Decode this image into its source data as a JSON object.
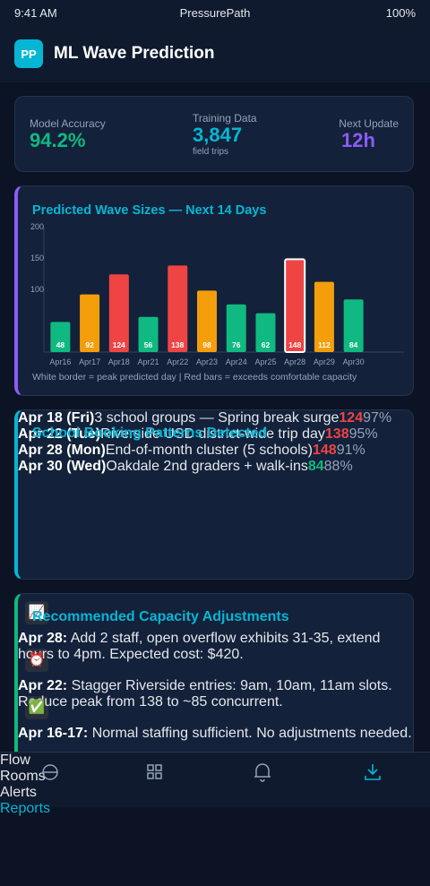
{
  "status": {
    "time": "9:41 AM",
    "app": "PressurePath",
    "battery": "100%"
  },
  "header": {
    "logo": "PP",
    "title": "ML Wave Prediction"
  },
  "stats": [
    {
      "label": "Model Accuracy",
      "value": "94.2%",
      "color": "#10b981"
    },
    {
      "label": "Training Data",
      "value": "3,847",
      "sub": "field trips",
      "color": "#06b6d4"
    },
    {
      "label": "Next Update",
      "value": "12h",
      "color": "#8b5cf6"
    }
  ],
  "chart_data": {
    "type": "bar",
    "title": "Predicted Wave Sizes — Next 14 Days",
    "categories": [
      "Apr16",
      "Apr17",
      "Apr18",
      "Apr21",
      "Apr22",
      "Apr23",
      "Apr24",
      "Apr25",
      "Apr28",
      "Apr29",
      "Apr30"
    ],
    "values": [
      48,
      92,
      124,
      56,
      138,
      98,
      76,
      62,
      148,
      112,
      84
    ],
    "colors": [
      "#10b981",
      "#f59e0b",
      "#ef4444",
      "#10b981",
      "#ef4444",
      "#f59e0b",
      "#10b981",
      "#10b981",
      "#ef4444",
      "#f59e0b",
      "#10b981"
    ],
    "outlined": [
      false,
      false,
      false,
      false,
      false,
      false,
      false,
      false,
      true,
      false,
      false
    ],
    "ylim": [
      0,
      200
    ],
    "yticks": [
      100,
      150,
      200
    ],
    "note": "White border = peak predicted day | Red bars = exceeds comfortable capacity"
  },
  "patterns": {
    "title": "School Booking Patterns Detected",
    "rows": [
      {
        "date": "Apr 18 (Fri)",
        "desc": "3 school groups — Spring break surge",
        "count": "124",
        "pct": "97%",
        "color": "#ef4444"
      },
      {
        "date": "Apr 22 (Tue)",
        "desc": "Riverside USD district-wide trip day",
        "count": "138",
        "pct": "95%",
        "color": "#ef4444"
      },
      {
        "date": "Apr 28 (Mon)",
        "desc": "End-of-month cluster (5 schools)",
        "count": "148",
        "pct": "91%",
        "color": "#ef4444"
      },
      {
        "date": "Apr 30 (Wed)",
        "desc": "Oakdale 2nd graders + walk-ins",
        "count": "84",
        "pct": "88%",
        "color": "#10b981"
      }
    ]
  },
  "recommendations": {
    "title": "Recommended Capacity Adjustments",
    "items": [
      {
        "icon": "📈",
        "date": "Apr 28:",
        "text": " Add 2 staff, open overflow exhibits 31-35, extend hours to 4pm. Expected cost: $420."
      },
      {
        "icon": "⏰",
        "date": "Apr 22:",
        "text": " Stagger Riverside entries: 9am, 10am, 11am slots. Reduce peak from 138 to ~85 concurrent."
      },
      {
        "icon": "✅",
        "date": "Apr 16-17:",
        "text": " Normal staffing sufficient. No adjustments needed."
      }
    ]
  },
  "nav": [
    "Flow",
    "Rooms",
    "Alerts",
    "Reports"
  ]
}
